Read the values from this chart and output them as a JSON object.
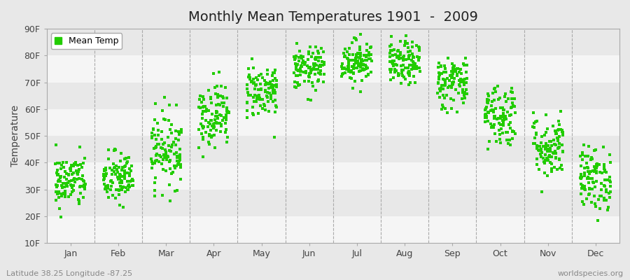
{
  "title": "Monthly Mean Temperatures 1901  -  2009",
  "ylabel": "Temperature",
  "yticks": [
    10,
    20,
    30,
    40,
    50,
    60,
    70,
    80,
    90
  ],
  "ytick_labels": [
    "10F",
    "20F",
    "30F",
    "40F",
    "50F",
    "60F",
    "70F",
    "80F",
    "90F"
  ],
  "ylim": [
    10,
    90
  ],
  "month_labels": [
    "Jan",
    "Feb",
    "Mar",
    "Apr",
    "May",
    "Jun",
    "Jul",
    "Aug",
    "Sep",
    "Oct",
    "Nov",
    "Dec"
  ],
  "dot_color": "#22cc00",
  "bg_color": "#e8e8e8",
  "plot_bg_color": "#ffffff",
  "stripe_light": "#f5f5f5",
  "stripe_dark": "#e8e8e8",
  "legend_label": "Mean Temp",
  "footnote_left": "Latitude 38.25 Longitude -87.25",
  "footnote_right": "worldspecies.org",
  "title_fontsize": 14,
  "label_fontsize": 10,
  "tick_fontsize": 9,
  "footnote_fontsize": 8,
  "monthly_means": [
    33,
    34,
    45,
    58,
    67,
    75,
    78,
    77,
    70,
    58,
    46,
    34
  ],
  "monthly_stds": [
    5,
    5,
    7,
    6,
    5,
    4,
    4,
    4,
    5,
    6,
    6,
    6
  ],
  "num_years": 109,
  "seed": 42
}
